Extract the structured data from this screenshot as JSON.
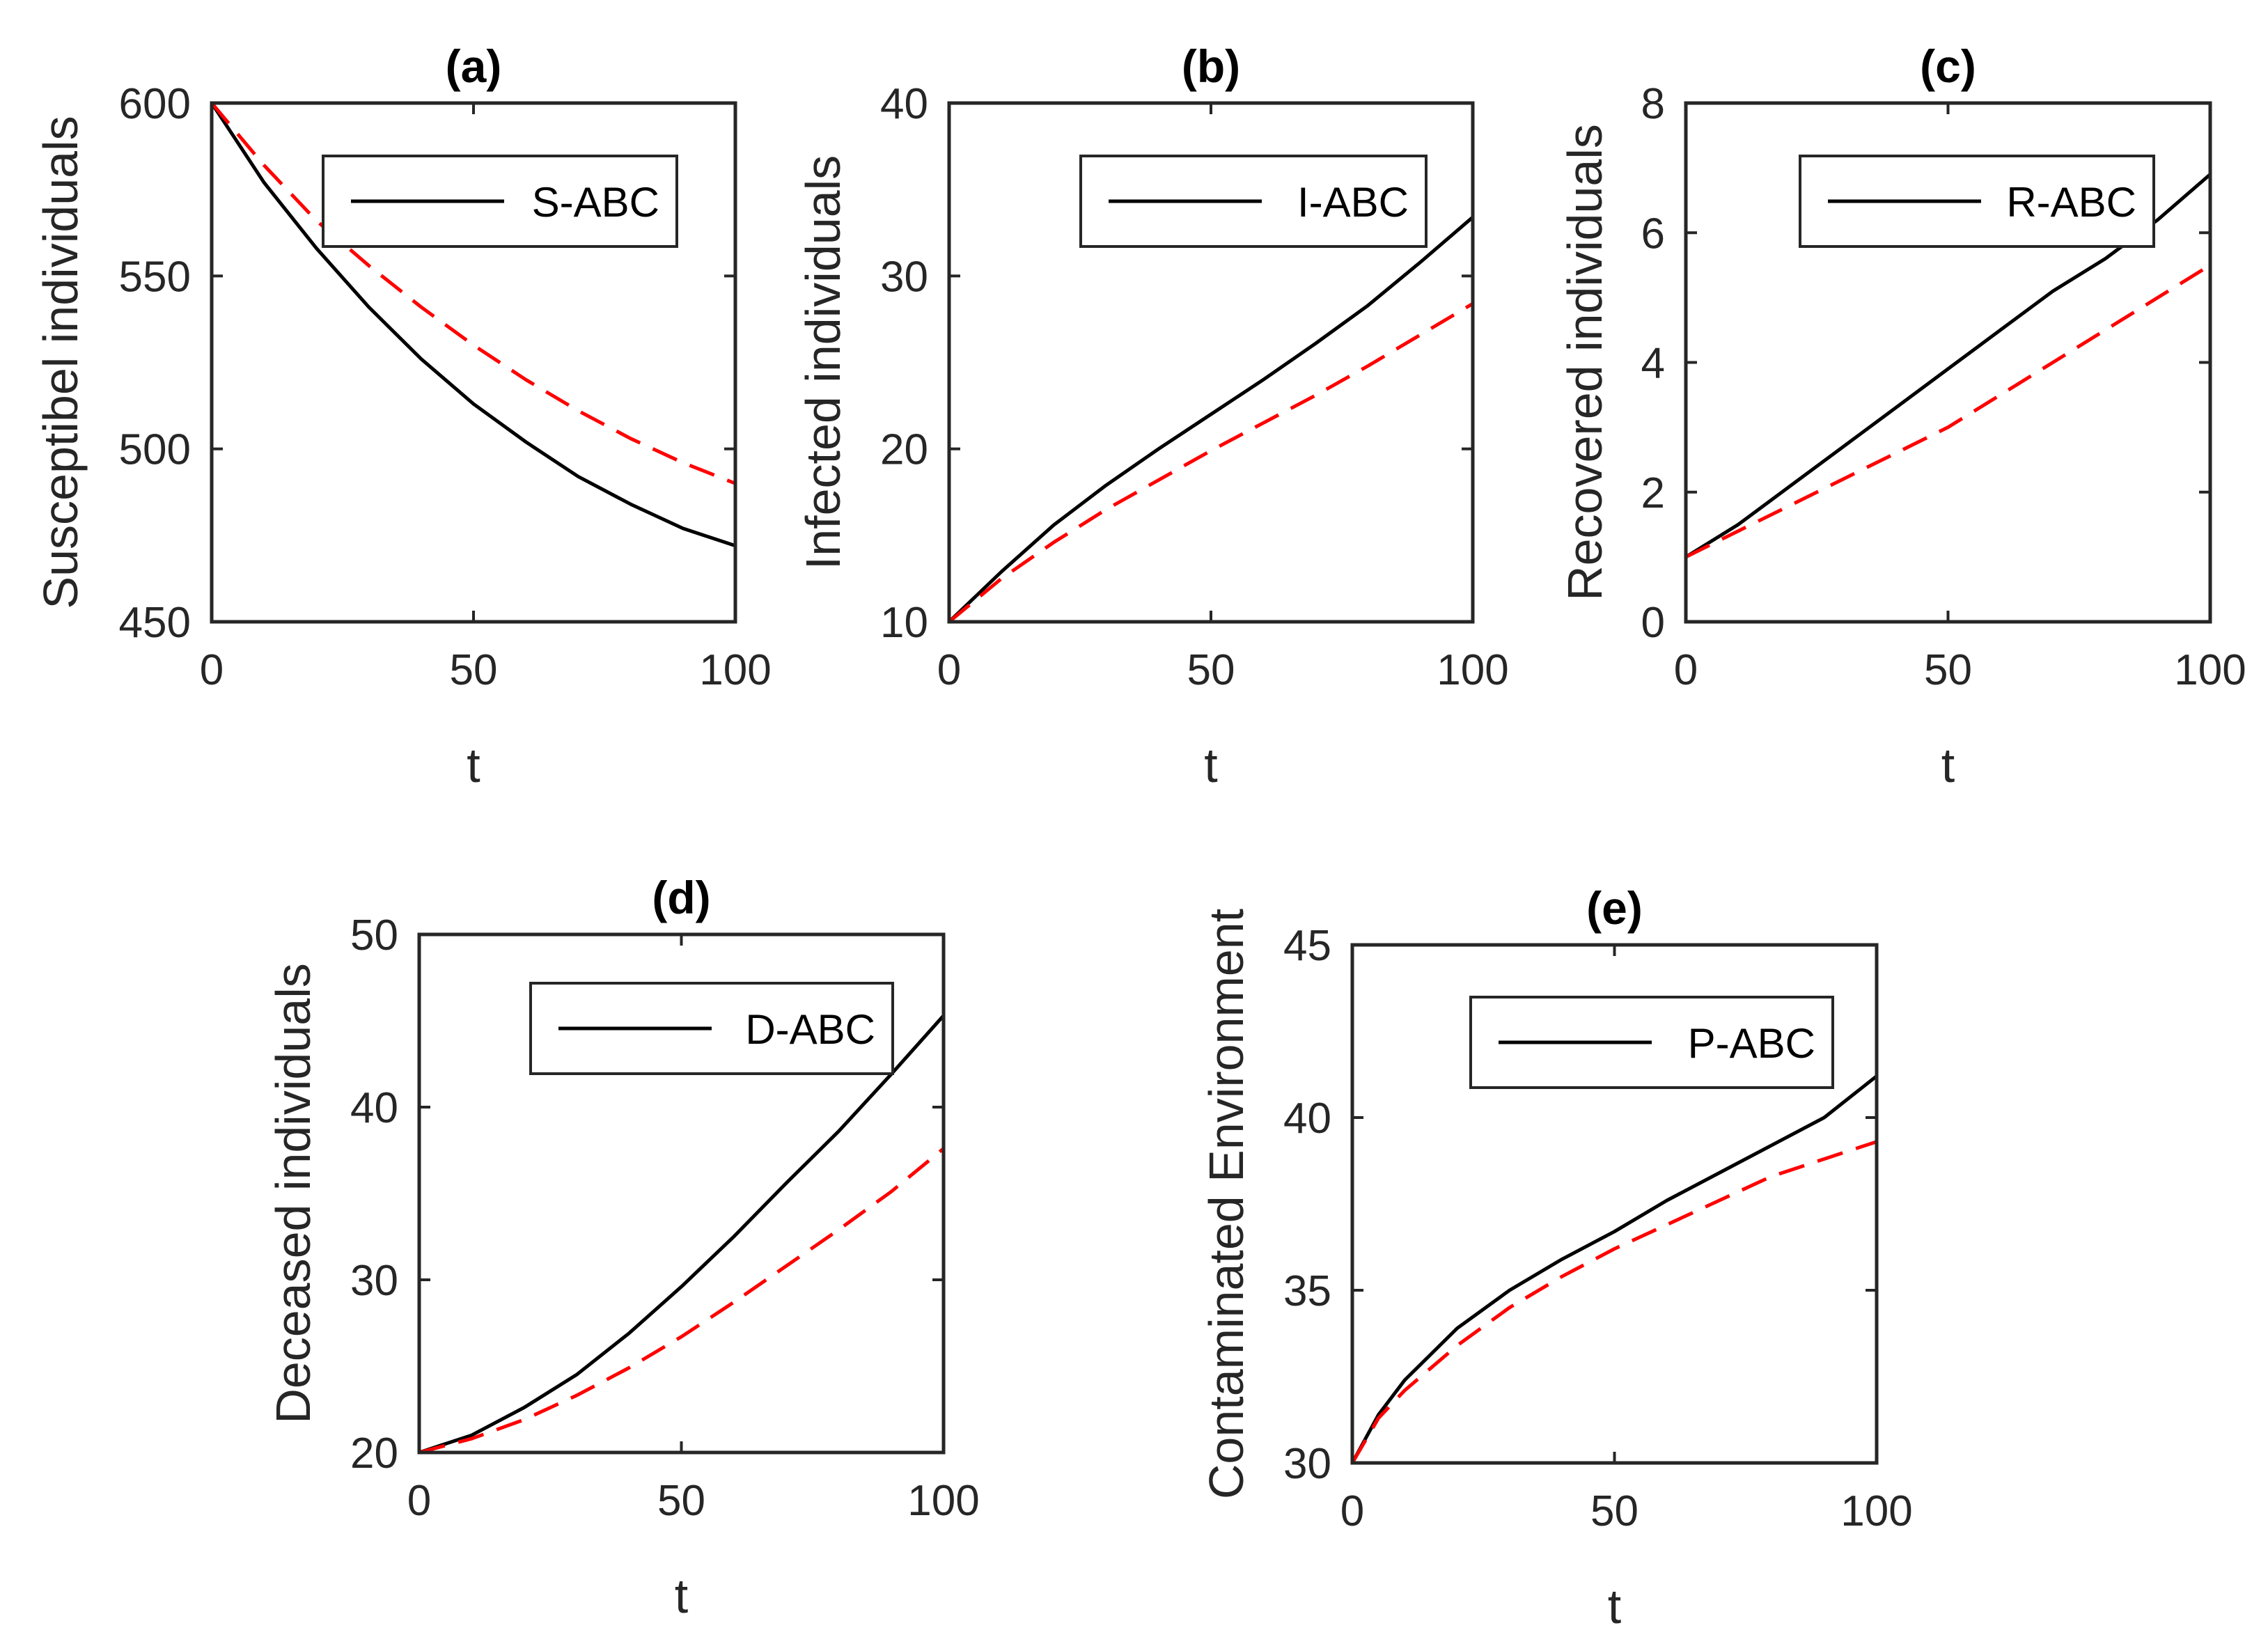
{
  "style": {
    "exact_color": "#000000",
    "approx_color": "#ff0000",
    "axis_color": "#262626"
  },
  "chart_data": [
    {
      "type": "line",
      "title": "(a)",
      "xlabel": "t",
      "ylabel": "Susceptibel individuals",
      "xlim": [
        0,
        100
      ],
      "ylim": [
        450,
        600
      ],
      "xticks": [
        0,
        50,
        100
      ],
      "yticks": [
        450,
        500,
        550,
        600
      ],
      "legend": [
        "S-ABC"
      ],
      "legend_position": "top-right",
      "x": [
        0,
        10,
        20,
        30,
        40,
        50,
        60,
        70,
        80,
        90,
        100
      ],
      "series": [
        {
          "name": "S-ABC",
          "style": "solid",
          "values": [
            600,
            577,
            558,
            541,
            526,
            513,
            502,
            492,
            484,
            477,
            472
          ]
        },
        {
          "style": "dashed",
          "values": [
            600,
            582,
            566,
            553,
            541,
            530,
            520,
            511,
            503,
            496,
            490
          ]
        }
      ]
    },
    {
      "type": "line",
      "title": "(b)",
      "xlabel": "t",
      "ylabel": "Infected individuals",
      "xlim": [
        0,
        100
      ],
      "ylim": [
        10,
        40
      ],
      "xticks": [
        0,
        50,
        100
      ],
      "yticks": [
        10,
        20,
        30,
        40
      ],
      "legend": [
        "I-ABC"
      ],
      "legend_position": "top-right",
      "x": [
        0,
        10,
        20,
        30,
        40,
        50,
        60,
        70,
        80,
        90,
        100
      ],
      "series": [
        {
          "name": "I-ABC",
          "style": "solid",
          "values": [
            10,
            12.9,
            15.6,
            17.9,
            20.0,
            22.0,
            24.0,
            26.1,
            28.3,
            30.8,
            33.4
          ]
        },
        {
          "style": "dashed",
          "values": [
            10,
            12.5,
            14.6,
            16.5,
            18.2,
            19.9,
            21.5,
            23.1,
            24.8,
            26.6,
            28.4
          ]
        }
      ]
    },
    {
      "type": "line",
      "title": "(c)",
      "xlabel": "t",
      "ylabel": "Recovered individuals",
      "xlim": [
        0,
        100
      ],
      "ylim": [
        0,
        8
      ],
      "xticks": [
        0,
        50,
        100
      ],
      "yticks": [
        0,
        2,
        4,
        6,
        8
      ],
      "legend": [
        "R-ABC"
      ],
      "legend_position": "top-right",
      "x": [
        0,
        10,
        20,
        30,
        40,
        50,
        60,
        70,
        80,
        90,
        100
      ],
      "series": [
        {
          "name": "R-ABC",
          "style": "solid",
          "values": [
            1.0,
            1.5,
            2.1,
            2.7,
            3.3,
            3.9,
            4.5,
            5.1,
            5.6,
            6.2,
            6.9
          ]
        },
        {
          "style": "dashed",
          "values": [
            1.0,
            1.4,
            1.8,
            2.2,
            2.6,
            3.0,
            3.5,
            4.0,
            4.5,
            5.0,
            5.5
          ]
        }
      ]
    },
    {
      "type": "line",
      "title": "(d)",
      "xlabel": "t",
      "ylabel": "Deceased individuals",
      "xlim": [
        0,
        100
      ],
      "ylim": [
        20,
        50
      ],
      "xticks": [
        0,
        50,
        100
      ],
      "yticks": [
        20,
        30,
        40,
        50
      ],
      "legend": [
        "D-ABC"
      ],
      "legend_position": "top-right",
      "x": [
        0,
        10,
        20,
        30,
        40,
        50,
        60,
        70,
        80,
        90,
        100
      ],
      "series": [
        {
          "name": "D-ABC",
          "style": "solid",
          "values": [
            20,
            21.0,
            22.6,
            24.5,
            26.9,
            29.6,
            32.5,
            35.6,
            38.6,
            41.9,
            45.3
          ]
        },
        {
          "style": "dashed",
          "values": [
            20,
            20.8,
            21.9,
            23.3,
            24.9,
            26.7,
            28.7,
            30.8,
            32.9,
            35.1,
            37.6
          ]
        }
      ]
    },
    {
      "type": "line",
      "title": "(e)",
      "xlabel": "t",
      "ylabel": "Contaminated Environment",
      "xlim": [
        0,
        100
      ],
      "ylim": [
        30,
        45
      ],
      "xticks": [
        0,
        50,
        100
      ],
      "yticks": [
        30,
        35,
        40,
        45
      ],
      "legend": [
        "P-ABC"
      ],
      "legend_position": "top-right",
      "x": [
        0,
        5,
        10,
        20,
        30,
        40,
        50,
        60,
        70,
        80,
        90,
        100
      ],
      "series": [
        {
          "name": "P-ABC",
          "style": "solid",
          "values": [
            30,
            31.4,
            32.4,
            33.9,
            35.0,
            35.9,
            36.7,
            37.6,
            38.4,
            39.2,
            40.0,
            41.2
          ]
        },
        {
          "style": "dashed",
          "values": [
            30,
            31.3,
            32.1,
            33.4,
            34.5,
            35.4,
            36.2,
            36.9,
            37.6,
            38.3,
            38.8,
            39.3
          ]
        }
      ]
    }
  ]
}
